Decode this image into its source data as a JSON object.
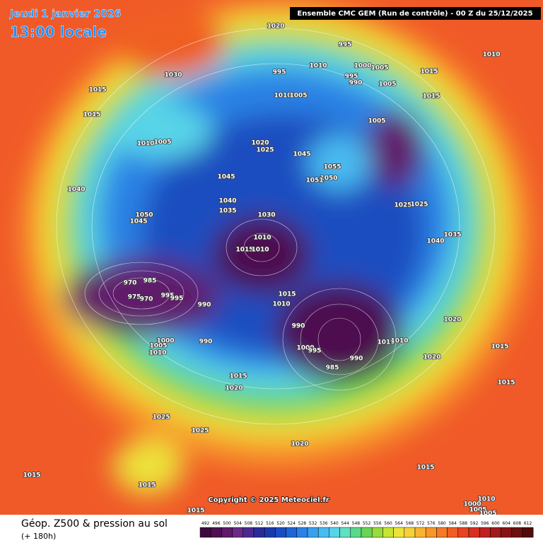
{
  "header": {
    "date": "Jeudi 1 janvier 2026",
    "time": "13:00 locale",
    "run": "Ensemble CMC GEM  (Run de contrôle)  - 00 Z du 25/12/2025"
  },
  "copyright": "Copyright © 2025 Meteociel.fr",
  "footer": {
    "title": "Géop. Z500 & pression au sol",
    "lead": "(+ 180h)"
  },
  "isobar_labels": [
    1020,
    995,
    1010,
    1030,
    995,
    1010,
    1000,
    1005,
    995,
    990,
    1005,
    1015,
    1015,
    1015,
    1010,
    1005,
    1015,
    1005,
    1010,
    1005,
    1020,
    1025,
    1045,
    1045,
    1055,
    1050,
    1051,
    1040,
    1040,
    1025,
    1025,
    1035,
    1030,
    1050,
    1045,
    1035,
    1040,
    1010,
    1015,
    1010,
    970,
    985,
    975,
    970,
    995,
    995,
    1015,
    1010,
    990,
    1020,
    990,
    1000,
    990,
    1005,
    1000,
    995,
    1010,
    1010,
    1015,
    1010,
    990,
    1020,
    985,
    1015,
    1015,
    1020,
    1025,
    1025,
    1020,
    1015,
    1015,
    1015,
    1010,
    1000,
    1005,
    1005,
    1015
  ],
  "scale": {
    "values": [
      492,
      496,
      500,
      504,
      508,
      512,
      516,
      520,
      524,
      528,
      532,
      536,
      540,
      544,
      548,
      552,
      556,
      560,
      564,
      568,
      572,
      576,
      580,
      584,
      588,
      592,
      596,
      600,
      604,
      608,
      612
    ],
    "colors": [
      "#3c0a3c",
      "#4e1050",
      "#601a6a",
      "#6a2a86",
      "#4a2a8e",
      "#2a2a9a",
      "#1a3aaa",
      "#1a4ec0",
      "#1e66d4",
      "#2a82e4",
      "#3aa0ee",
      "#48bcf2",
      "#58d4e8",
      "#60e0c0",
      "#5ad88a",
      "#68d458",
      "#98dc3c",
      "#c6e434",
      "#ece23a",
      "#f6d03a",
      "#f8b432",
      "#f8962c",
      "#f47a28",
      "#f05e24",
      "#e84422",
      "#d83020",
      "#c02020",
      "#a01a1a",
      "#861414",
      "#6c1010",
      "#500c0c"
    ]
  }
}
